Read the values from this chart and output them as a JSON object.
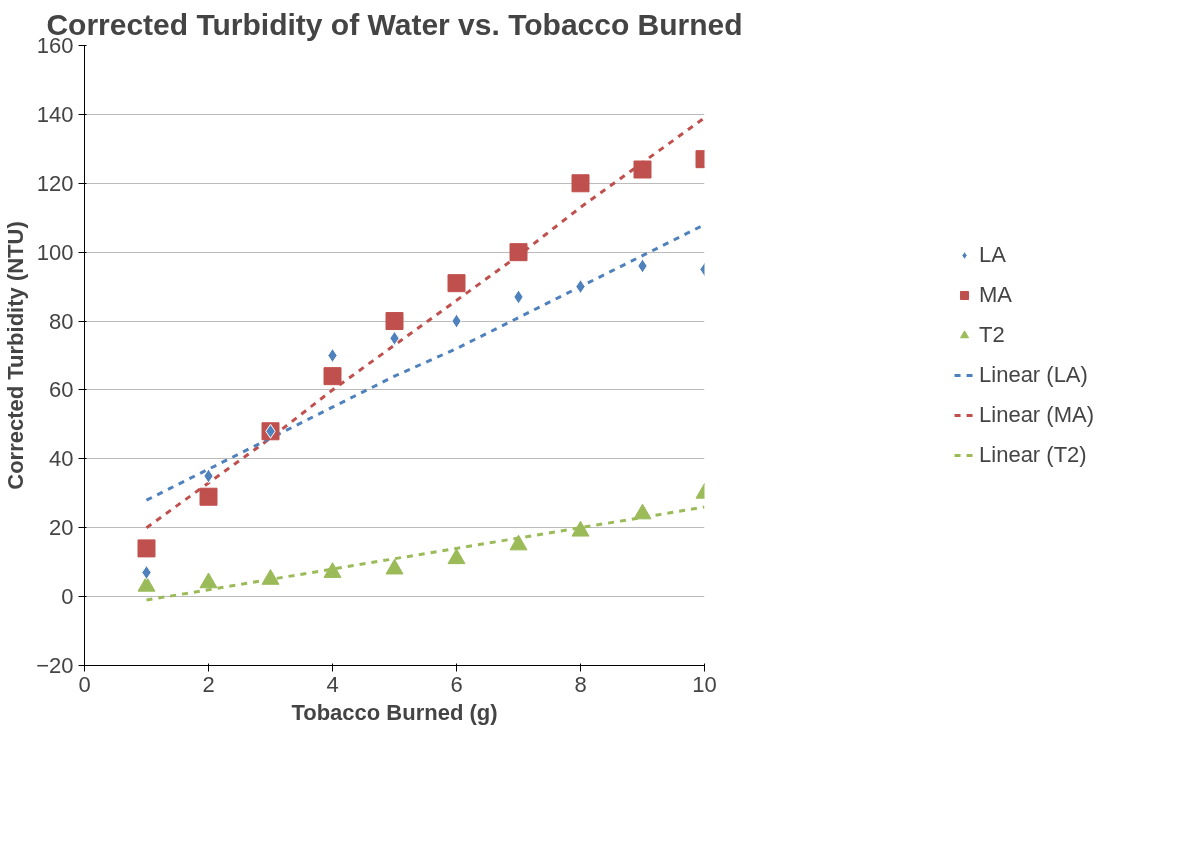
{
  "chart_data": {
    "type": "scatter",
    "title": "Corrected Turbidity of Water vs. Tobacco Burned",
    "xlabel": "Tobacco Burned (g)",
    "ylabel": "Corrected Turbidity (NTU)",
    "x": [
      1,
      2,
      3,
      4,
      5,
      6,
      7,
      8,
      9,
      10
    ],
    "series": [
      {
        "name": "LA",
        "color": "#4f81bd",
        "marker": "diamond",
        "values": [
          7,
          35,
          48,
          70,
          75,
          80,
          87,
          90,
          96,
          95
        ]
      },
      {
        "name": "MA",
        "color": "#c0504d",
        "marker": "square",
        "values": [
          14,
          29,
          48,
          64,
          80,
          91,
          100,
          120,
          124,
          127
        ]
      },
      {
        "name": "T2",
        "color": "#9bbb59",
        "marker": "triangle",
        "values": [
          3,
          4,
          5,
          7,
          8,
          11,
          15,
          19,
          24,
          30
        ]
      },
      {
        "name": "Linear (LA)",
        "type": "line",
        "line_style": "dashed",
        "color": "#4f81bd",
        "values": [
          28,
          37,
          46,
          55,
          64,
          72,
          81,
          90,
          99,
          108
        ]
      },
      {
        "name": "Linear (MA)",
        "type": "line",
        "line_style": "dashed",
        "color": "#c0504d",
        "values": [
          20,
          33,
          46,
          60,
          73,
          86,
          99,
          113,
          126,
          139
        ]
      },
      {
        "name": "Linear (T2)",
        "type": "line",
        "line_style": "dashed",
        "color": "#9bbb59",
        "values": [
          -1,
          2,
          5,
          8,
          11,
          14,
          17,
          20,
          23,
          26
        ]
      }
    ],
    "xlim": [
      0,
      10
    ],
    "xticks": [
      0,
      2,
      4,
      6,
      8,
      10
    ],
    "ylim": [
      -20,
      160
    ],
    "yticks": [
      -20,
      0,
      20,
      40,
      60,
      80,
      100,
      120,
      140,
      160
    ],
    "grid": "y",
    "legend": "right"
  }
}
